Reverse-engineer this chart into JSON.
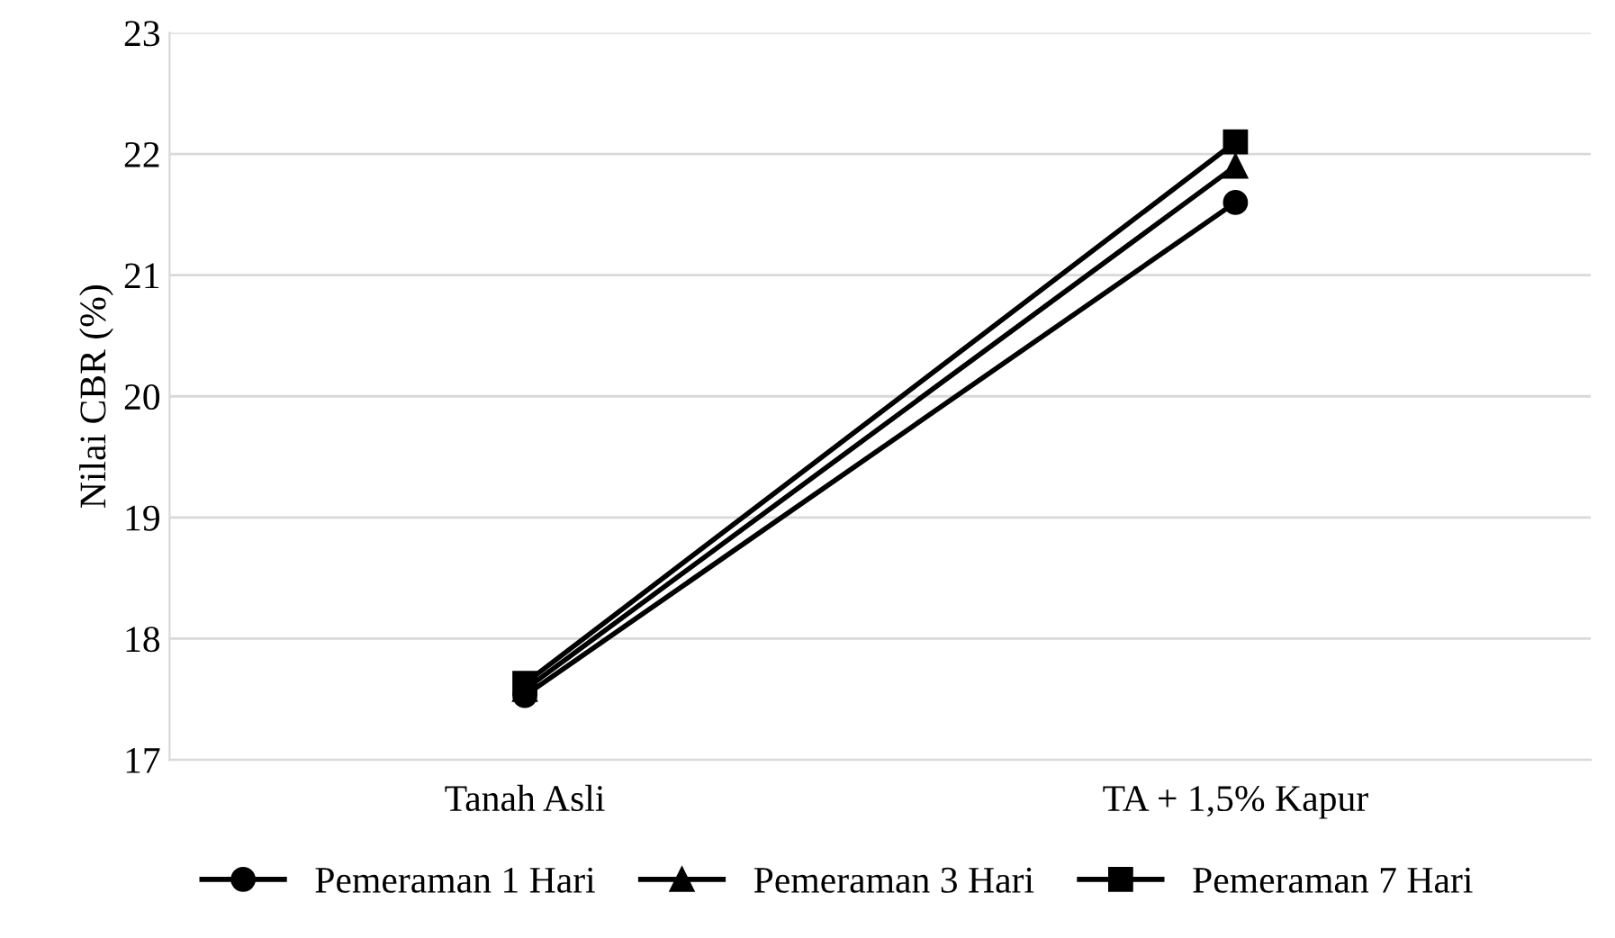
{
  "chart_data": {
    "type": "line",
    "ylabel": "Nilai CBR (%)",
    "categories": [
      "Tanah Asli",
      "TA + 1,5% Kapur"
    ],
    "series": [
      {
        "name": "Pemeraman 1 Hari",
        "color": "#000000",
        "marker": "circle",
        "values": [
          17.53,
          21.6
        ]
      },
      {
        "name": "Pemeraman 3 Hari",
        "color": "#000000",
        "marker": "triangle",
        "values": [
          17.58,
          21.9
        ]
      },
      {
        "name": "Pemeraman 7 Hari",
        "color": "#000000",
        "marker": "square",
        "values": [
          17.63,
          22.1
        ]
      }
    ],
    "ylim": [
      17,
      23
    ],
    "yticks": [
      17,
      18,
      19,
      20,
      21,
      22,
      23
    ],
    "grid": "y",
    "legend": "bottom",
    "line_style": "solid"
  }
}
